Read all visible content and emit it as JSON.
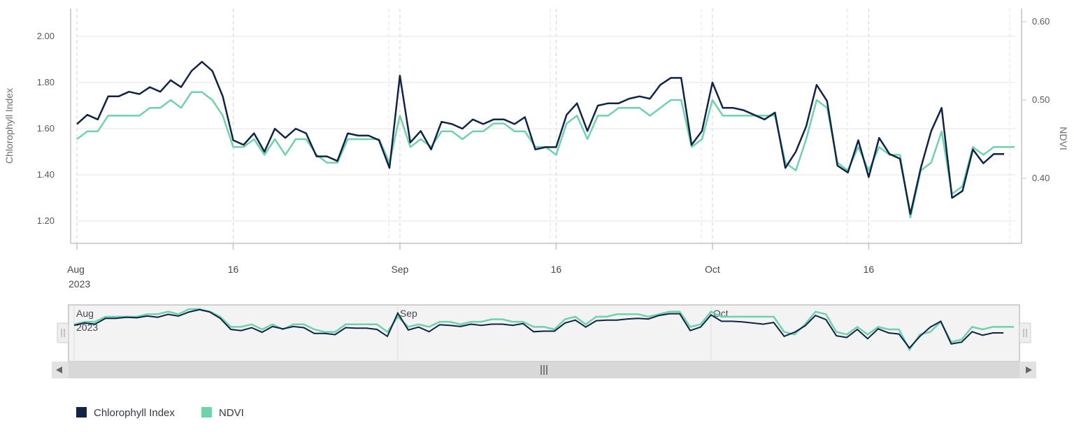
{
  "colors": {
    "chlorophyll": "#0f2446",
    "ndvi": "#6fd2ab",
    "grid": "#e6e6e6",
    "axis": "#c4c4c4",
    "navigator_bg": "#f3f3f3",
    "navigator_border": "#cfcfcf",
    "scrollbar_bg": "#e2e2e2"
  },
  "chart_data": {
    "type": "line",
    "title": "",
    "x": [
      "2023-08-01",
      "2023-08-02",
      "2023-08-03",
      "2023-08-04",
      "2023-08-05",
      "2023-08-06",
      "2023-08-07",
      "2023-08-08",
      "2023-08-09",
      "2023-08-10",
      "2023-08-11",
      "2023-08-12",
      "2023-08-13",
      "2023-08-14",
      "2023-08-15",
      "2023-08-16",
      "2023-08-17",
      "2023-08-18",
      "2023-08-19",
      "2023-08-20",
      "2023-08-21",
      "2023-08-22",
      "2023-08-23",
      "2023-08-24",
      "2023-08-25",
      "2023-08-26",
      "2023-08-27",
      "2023-08-28",
      "2023-08-29",
      "2023-08-30",
      "2023-08-31",
      "2023-09-01",
      "2023-09-02",
      "2023-09-03",
      "2023-09-04",
      "2023-09-05",
      "2023-09-06",
      "2023-09-07",
      "2023-09-08",
      "2023-09-09",
      "2023-09-10",
      "2023-09-11",
      "2023-09-12",
      "2023-09-13",
      "2023-09-14",
      "2023-09-15",
      "2023-09-16",
      "2023-09-17",
      "2023-09-18",
      "2023-09-19",
      "2023-09-20",
      "2023-09-21",
      "2023-09-22",
      "2023-09-23",
      "2023-09-24",
      "2023-09-25",
      "2023-09-26",
      "2023-09-27",
      "2023-09-28",
      "2023-09-29",
      "2023-09-30",
      "2023-10-01",
      "2023-10-02",
      "2023-10-03",
      "2023-10-04",
      "2023-10-05",
      "2023-10-06",
      "2023-10-07",
      "2023-10-08",
      "2023-10-09",
      "2023-10-10",
      "2023-10-11",
      "2023-10-12",
      "2023-10-13",
      "2023-10-14",
      "2023-10-15",
      "2023-10-16",
      "2023-10-17",
      "2023-10-18",
      "2023-10-19",
      "2023-10-20",
      "2023-10-21",
      "2023-10-22",
      "2023-10-23",
      "2023-10-24",
      "2023-10-25",
      "2023-10-26",
      "2023-10-27",
      "2023-10-28",
      "2023-10-29",
      "2023-10-30"
    ],
    "series": [
      {
        "name": "Chlorophyll Index",
        "axis": "left",
        "values": [
          1.62,
          1.66,
          1.64,
          1.74,
          1.74,
          1.76,
          1.75,
          1.78,
          1.76,
          1.81,
          1.78,
          1.85,
          1.89,
          1.85,
          1.74,
          1.55,
          1.53,
          1.58,
          1.5,
          1.6,
          1.56,
          1.6,
          1.58,
          1.48,
          1.48,
          1.46,
          1.58,
          1.57,
          1.57,
          1.55,
          1.43,
          1.83,
          1.54,
          1.59,
          1.51,
          1.63,
          1.62,
          1.6,
          1.64,
          1.62,
          1.64,
          1.64,
          1.62,
          1.65,
          1.51,
          1.52,
          1.52,
          1.66,
          1.71,
          1.59,
          1.7,
          1.71,
          1.71,
          1.73,
          1.74,
          1.73,
          1.79,
          1.82,
          1.82,
          1.53,
          1.59,
          1.8,
          1.69,
          1.69,
          1.68,
          1.66,
          1.64,
          1.67,
          1.43,
          1.5,
          1.61,
          1.79,
          1.72,
          1.44,
          1.41,
          1.55,
          1.39,
          1.56,
          1.49,
          1.47,
          1.23,
          1.43,
          1.59,
          1.69,
          1.3,
          1.33,
          1.51,
          1.45,
          1.49,
          1.49,
          null
        ]
      },
      {
        "name": "NDVI",
        "axis": "right",
        "values": [
          0.45,
          0.46,
          0.46,
          0.48,
          0.48,
          0.48,
          0.48,
          0.49,
          0.49,
          0.5,
          0.49,
          0.51,
          0.51,
          0.5,
          0.48,
          0.44,
          0.44,
          0.45,
          0.43,
          0.45,
          0.43,
          0.45,
          0.45,
          0.43,
          0.42,
          0.42,
          0.45,
          0.45,
          0.45,
          0.45,
          0.42,
          0.48,
          0.44,
          0.45,
          0.44,
          0.46,
          0.46,
          0.45,
          0.46,
          0.46,
          0.47,
          0.47,
          0.46,
          0.46,
          0.44,
          0.44,
          0.43,
          0.47,
          0.48,
          0.45,
          0.48,
          0.48,
          0.49,
          0.49,
          0.49,
          0.48,
          0.49,
          0.5,
          0.5,
          0.44,
          0.45,
          0.5,
          0.48,
          0.48,
          0.48,
          0.48,
          0.48,
          0.48,
          0.42,
          0.41,
          0.45,
          0.5,
          0.49,
          0.42,
          0.41,
          0.44,
          0.41,
          0.44,
          0.43,
          0.43,
          0.35,
          0.41,
          0.42,
          0.46,
          0.38,
          0.39,
          0.44,
          0.43,
          0.44,
          0.44,
          0.44
        ]
      }
    ],
    "y_left": {
      "label": "Chlorophyll Index",
      "ticks": [
        "1.20",
        "1.40",
        "1.60",
        "1.80",
        "2.00"
      ],
      "ylim": [
        1.2,
        2.0
      ]
    },
    "y_right": {
      "label": "NDVI",
      "ticks": [
        "0.40",
        "0.50",
        "0.60"
      ],
      "ylim": [
        0.4,
        0.6
      ]
    },
    "x_ticks": [
      {
        "date": "2023-08-01",
        "label": "Aug",
        "sublabel": "2023"
      },
      {
        "date": "2023-08-16",
        "label": "16"
      },
      {
        "date": "2023-09-01",
        "label": "Sep"
      },
      {
        "date": "2023-09-16",
        "label": "16"
      },
      {
        "date": "2023-10-01",
        "label": "Oct"
      },
      {
        "date": "2023-10-16",
        "label": "16"
      }
    ],
    "navigator_labels": [
      {
        "date": "2023-08-01",
        "label": "Aug",
        "sublabel": "2023"
      },
      {
        "date": "2023-09-01",
        "label": "Sep"
      },
      {
        "date": "2023-10-01",
        "label": "Oct"
      }
    ],
    "legend": {
      "position": "bottom-left",
      "items": [
        "Chlorophyll Index",
        "NDVI"
      ]
    },
    "grid": true
  },
  "icons": {
    "scroll_left": "arrow-left-icon",
    "scroll_right": "arrow-right-icon",
    "scroll_grip": "grip-icon",
    "handle_grip": "handle-grip-icon"
  }
}
